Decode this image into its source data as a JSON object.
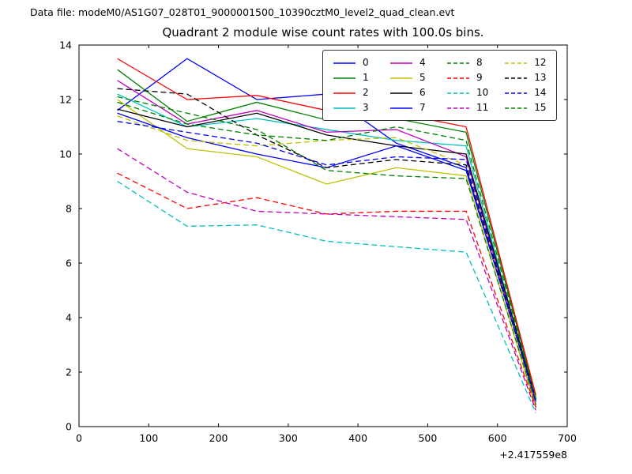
{
  "header": {
    "datafile": "Data file: modeM0/AS1G07_028T01_9000001500_10390cztM0_level2_quad_clean.evt"
  },
  "chart_data": {
    "type": "line",
    "title": "Quadrant 2 module wise count rates with 100.0s bins.",
    "xlabel": "",
    "ylabel": "",
    "x_offset_label": "+2.417559e8",
    "xlim": [
      0,
      700
    ],
    "ylim": [
      0,
      14
    ],
    "xticks": [
      0,
      100,
      200,
      300,
      400,
      500,
      600,
      700
    ],
    "yticks": [
      0,
      2,
      4,
      6,
      8,
      10,
      12,
      14
    ],
    "grid": false,
    "legend_position": "upper right, 4 columns",
    "x": [
      55,
      155,
      255,
      355,
      455,
      555,
      655
    ],
    "series": [
      {
        "name": "0",
        "color": "#0000ff",
        "dash": false,
        "values": [
          11.6,
          13.5,
          12.0,
          12.2,
          10.4,
          9.5,
          0.9
        ]
      },
      {
        "name": "1",
        "color": "#008000",
        "dash": false,
        "values": [
          13.1,
          11.2,
          11.9,
          11.25,
          11.3,
          10.8,
          1.05
        ]
      },
      {
        "name": "2",
        "color": "#ff0000",
        "dash": false,
        "values": [
          13.5,
          12.0,
          12.15,
          11.6,
          11.5,
          11.0,
          1.15
        ]
      },
      {
        "name": "3",
        "color": "#00bfbf",
        "dash": false,
        "values": [
          12.2,
          11.0,
          11.3,
          10.9,
          10.5,
          10.3,
          0.85
        ]
      },
      {
        "name": "4",
        "color": "#bf00bf",
        "dash": false,
        "values": [
          12.7,
          11.1,
          11.6,
          10.8,
          10.9,
          9.9,
          0.8
        ]
      },
      {
        "name": "5",
        "color": "#bfbf00",
        "dash": false,
        "values": [
          12.0,
          10.2,
          9.9,
          8.9,
          9.5,
          9.2,
          0.7
        ]
      },
      {
        "name": "6",
        "color": "#000000",
        "dash": false,
        "values": [
          11.65,
          11.0,
          11.5,
          10.7,
          10.3,
          10.0,
          1.0
        ]
      },
      {
        "name": "7",
        "color": "#0000ff",
        "dash": false,
        "values": [
          11.5,
          10.6,
          10.0,
          9.5,
          10.3,
          9.4,
          0.95
        ]
      },
      {
        "name": "8",
        "color": "#008000",
        "dash": true,
        "values": [
          12.1,
          11.5,
          10.9,
          9.4,
          9.2,
          9.1,
          0.8
        ]
      },
      {
        "name": "9",
        "color": "#ff0000",
        "dash": true,
        "values": [
          9.3,
          8.0,
          8.4,
          7.8,
          7.9,
          7.9,
          0.7
        ]
      },
      {
        "name": "10",
        "color": "#00bfbf",
        "dash": true,
        "values": [
          9.0,
          7.35,
          7.4,
          6.8,
          6.6,
          6.4,
          0.5
        ]
      },
      {
        "name": "11",
        "color": "#bf00bf",
        "dash": true,
        "values": [
          10.2,
          8.6,
          7.9,
          7.8,
          7.7,
          7.6,
          0.6
        ]
      },
      {
        "name": "12",
        "color": "#bfbf00",
        "dash": true,
        "values": [
          11.4,
          10.5,
          10.3,
          10.5,
          10.6,
          9.6,
          0.85
        ]
      },
      {
        "name": "13",
        "color": "#000000",
        "dash": true,
        "values": [
          12.4,
          12.2,
          10.7,
          9.5,
          9.8,
          9.6,
          0.9
        ]
      },
      {
        "name": "14",
        "color": "#0000ff",
        "dash": true,
        "values": [
          11.2,
          10.8,
          10.4,
          9.6,
          9.9,
          9.8,
          0.9
        ]
      },
      {
        "name": "15",
        "color": "#008000",
        "dash": true,
        "values": [
          11.9,
          11.1,
          10.7,
          10.5,
          11.0,
          10.5,
          1.0
        ]
      }
    ]
  }
}
